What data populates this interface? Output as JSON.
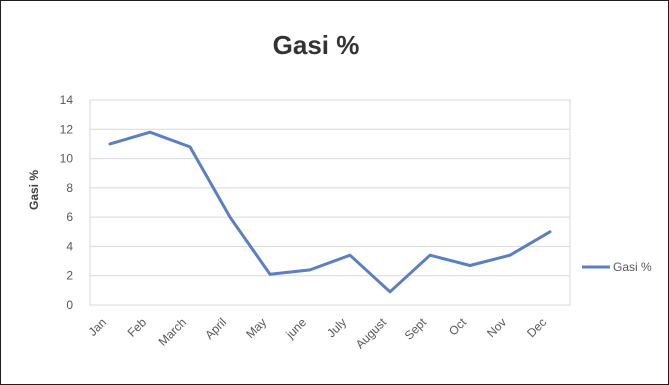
{
  "chart_data": {
    "type": "line",
    "title": "Gasi %",
    "xlabel": "",
    "ylabel": "Gasi %",
    "categories": [
      "Jan",
      "Feb",
      "March",
      "April",
      "May",
      "june",
      "July",
      "August",
      "Sept",
      "Oct",
      "Nov",
      "Dec"
    ],
    "series": [
      {
        "name": "Gasi %",
        "values": [
          11.0,
          11.8,
          10.8,
          6.0,
          2.1,
          2.4,
          3.4,
          0.9,
          3.4,
          2.7,
          3.4,
          5.0
        ],
        "color": "#5b7fc3"
      }
    ],
    "ylim": [
      0,
      14
    ],
    "yticks": [
      "0",
      "2",
      "4",
      "6",
      "8",
      "10",
      "12",
      "14"
    ],
    "grid": true,
    "legend": "right"
  }
}
